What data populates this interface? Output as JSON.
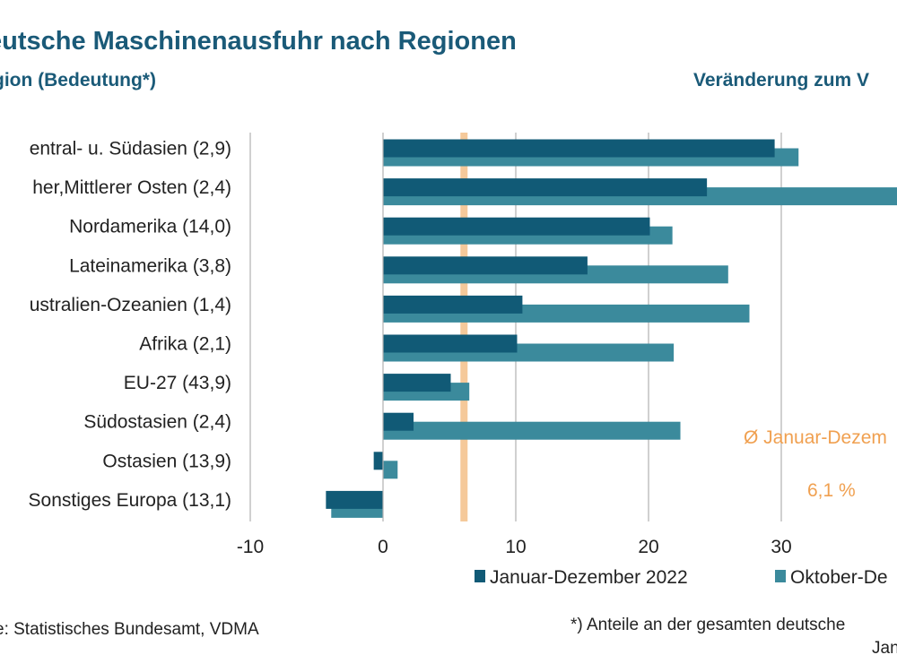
{
  "title": "eutsche Maschinenausfuhr nach Regionen",
  "subtitle_left": "gion (Bedeutung*)",
  "subtitle_right": "Veränderung zum V",
  "source": "e: Statistisches Bundesamt, VDMA",
  "footnote_line1": "*) Anteile an der gesamten deutsche",
  "footnote_line2": "Jan",
  "colors": {
    "series1": "#115a76",
    "series2": "#3b8a9c",
    "avg_line": "#f5c99a",
    "avg_text": "#f0a050",
    "grid": "#b0b0b0"
  },
  "chart_data": {
    "type": "bar",
    "orientation": "horizontal",
    "categories": [
      "entral- u. Südasien (2,9)",
      "her,Mittlerer Osten (2,4)",
      "Nordamerika (14,0)",
      "Lateinamerika (3,8)",
      "ustralien-Ozeanien (1,4)",
      "Afrika (2,1)",
      "EU-27 (43,9)",
      "Südostasien (2,4)",
      "Ostasien (13,9)",
      "Sonstiges Europa (13,1)"
    ],
    "series": [
      {
        "name": "Januar-Dezember 2022",
        "values": [
          29.5,
          24.4,
          20.1,
          15.4,
          10.5,
          10.1,
          5.1,
          2.3,
          -0.7,
          -4.3
        ]
      },
      {
        "name": "Oktober-De",
        "values": [
          31.3,
          39.2,
          21.8,
          26.0,
          27.6,
          21.9,
          6.5,
          22.4,
          1.1,
          -3.9
        ]
      }
    ],
    "xlim": [
      -10,
      38
    ],
    "xticks": [
      -10,
      0,
      10,
      20,
      30
    ],
    "xtick_labels": [
      "-10",
      "0",
      "10",
      "20",
      "30"
    ],
    "average": {
      "value": 6.1,
      "label_line1": "Ø Januar-Dezem",
      "label_line2": "6,1 %"
    },
    "grid": true,
    "legend_position": "bottom"
  }
}
